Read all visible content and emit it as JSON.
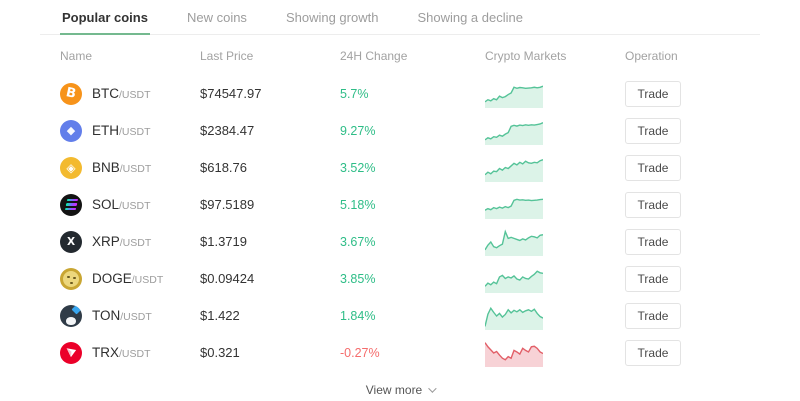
{
  "tabs": [
    {
      "label": "Popular coins",
      "active": true
    },
    {
      "label": "New coins",
      "active": false
    },
    {
      "label": "Showing growth",
      "active": false
    },
    {
      "label": "Showing a decline",
      "active": false
    }
  ],
  "columns": [
    "Name",
    "Last Price",
    "24H Change",
    "Crypto Markets",
    "Operation"
  ],
  "colors": {
    "green_text": "#2ebd87",
    "red_text": "#f56c6c",
    "spark_green_line": "#55c398",
    "spark_green_fill": "#dcf3e8",
    "spark_red_line": "#e25f68",
    "spark_red_fill": "#f7d2d6",
    "tab_underline": "#74b98f"
  },
  "rows": [
    {
      "base": "BTC",
      "quote": "/USDT",
      "icon": "btc",
      "price": "$74547.97",
      "change": "5.7%",
      "trend": "up",
      "button": "Trade",
      "spark": [
        18,
        26,
        22,
        30,
        26,
        40,
        34,
        38,
        46,
        52,
        74,
        70,
        73,
        72,
        70,
        71,
        72,
        74,
        72,
        74,
        78
      ]
    },
    {
      "base": "ETH",
      "quote": "/USDT",
      "icon": "eth",
      "price": "$2384.47",
      "change": "9.27%",
      "trend": "up",
      "button": "Trade",
      "spark": [
        14,
        22,
        18,
        26,
        24,
        32,
        28,
        36,
        42,
        66,
        70,
        67,
        71,
        69,
        72,
        70,
        72,
        71,
        73,
        75,
        80
      ]
    },
    {
      "base": "BNB",
      "quote": "/USDT",
      "icon": "bnb",
      "price": "$618.76",
      "change": "3.52%",
      "trend": "up",
      "button": "Trade",
      "spark": [
        22,
        32,
        26,
        36,
        34,
        46,
        40,
        50,
        46,
        56,
        66,
        60,
        70,
        64,
        74,
        68,
        66,
        70,
        68,
        76,
        80
      ]
    },
    {
      "base": "SOL",
      "quote": "/USDT",
      "icon": "sol",
      "price": "$97.5189",
      "change": "5.18%",
      "trend": "up",
      "button": "Trade",
      "spark": [
        28,
        34,
        30,
        38,
        34,
        40,
        36,
        42,
        38,
        44,
        66,
        70,
        67,
        68,
        66,
        67,
        65,
        66,
        67,
        69,
        70
      ]
    },
    {
      "base": "XRP",
      "quote": "/USDT",
      "icon": "xrp",
      "price": "$1.3719",
      "change": "3.67%",
      "trend": "up",
      "button": "Trade",
      "spark": [
        18,
        36,
        48,
        30,
        26,
        34,
        40,
        88,
        62,
        66,
        62,
        58,
        54,
        60,
        56,
        64,
        70,
        68,
        64,
        74,
        76
      ]
    },
    {
      "base": "DOGE",
      "quote": "/USDT",
      "icon": "doge",
      "price": "$0.09424",
      "change": "3.85%",
      "trend": "up",
      "button": "Trade",
      "spark": [
        20,
        32,
        26,
        36,
        30,
        56,
        62,
        50,
        56,
        52,
        60,
        48,
        44,
        56,
        50,
        48,
        58,
        66,
        78,
        72,
        70
      ]
    },
    {
      "base": "TON",
      "quote": "/USDT",
      "icon": "ton",
      "price": "$1.422",
      "change": "1.84%",
      "trend": "up",
      "button": "Trade",
      "spark": [
        8,
        55,
        78,
        62,
        48,
        58,
        44,
        54,
        72,
        60,
        70,
        64,
        72,
        62,
        68,
        72,
        66,
        74,
        58,
        46,
        40
      ]
    },
    {
      "base": "TRX",
      "quote": "/USDT",
      "icon": "trx",
      "price": "$0.321",
      "change": "-0.27%",
      "trend": "down",
      "button": "Trade",
      "spark": [
        88,
        72,
        60,
        48,
        54,
        40,
        28,
        22,
        34,
        28,
        58,
        52,
        44,
        66,
        58,
        52,
        72,
        74,
        66,
        52,
        46
      ]
    }
  ],
  "footer": {
    "view_more": "View more"
  }
}
